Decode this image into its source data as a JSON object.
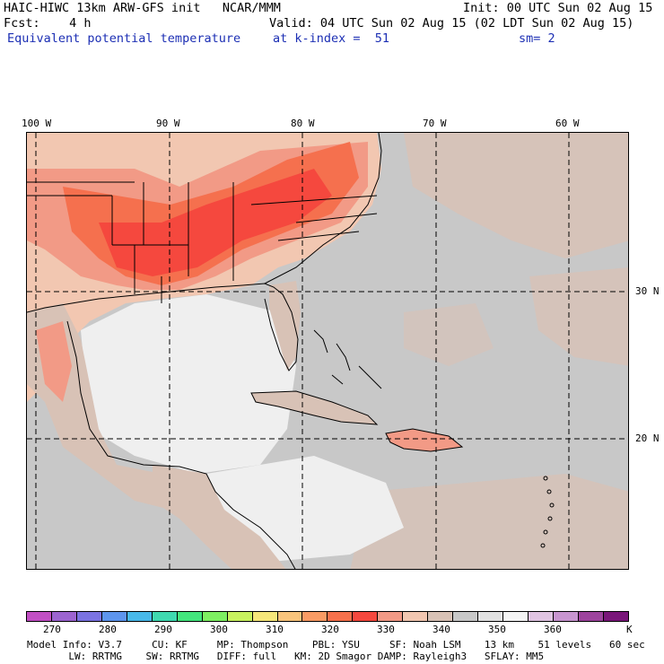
{
  "header": {
    "line1_left": "HAIC-HIWC 13km ARW-GFS init   NCAR/MMM",
    "line1_right": "Init: 00 UTC Sun 02 Aug 15",
    "line2_left": "Fcst:    4 h",
    "line2_right": "Valid: 04 UTC Sun 02 Aug 15 (02 LDT Sun 02 Aug 15)",
    "line3_field": "Equivalent potential temperature",
    "line3_level": "at k-index =  51",
    "line3_smooth": "sm= 2"
  },
  "axes": {
    "lon_labels": [
      "100 W",
      "90 W",
      "80 W",
      "70 W",
      "60 W"
    ],
    "lat_labels": [
      "30 N",
      "20 N"
    ]
  },
  "colorbar": {
    "unit": "K",
    "tick_labels": [
      "270",
      "280",
      "290",
      "300",
      "310",
      "320",
      "330",
      "340",
      "350",
      "360"
    ],
    "colors": [
      "#c24fc4",
      "#9c64d0",
      "#7b73e2",
      "#5e95ee",
      "#48b9ea",
      "#3fd9b0",
      "#43e67d",
      "#7ef062",
      "#c8f25f",
      "#f6e77a",
      "#f9c47c",
      "#f99b64",
      "#f7714c",
      "#f5483e",
      "#f29a86",
      "#f2c7b1",
      "#d8c2b6",
      "#c8c8c8",
      "#e2e2e2",
      "#f4f4f4",
      "#e0c4e2",
      "#c895d0",
      "#9e449e",
      "#7a167a"
    ]
  },
  "footer": {
    "line1": "Model Info: V3.7     CU: KF     MP: Thompson    PBL: YSU     SF: Noah LSM    13 km    51 levels   60 sec",
    "line2": "       LW: RRTMG    SW: RRTMG   DIFF: full   KM: 2D Smagor DAMP: Rayleigh3   SFLAY: MM5"
  },
  "map": {
    "icon": "weather-map-icon",
    "colors": {
      "ocean": "#c8c8c8",
      "gulf_light": "#efefef",
      "warm_tan": "#f2c7b1",
      "salmon": "#f29a86",
      "orange": "#f5704e",
      "red": "#f5483e",
      "grey_tan": "#d8c2b6"
    }
  }
}
